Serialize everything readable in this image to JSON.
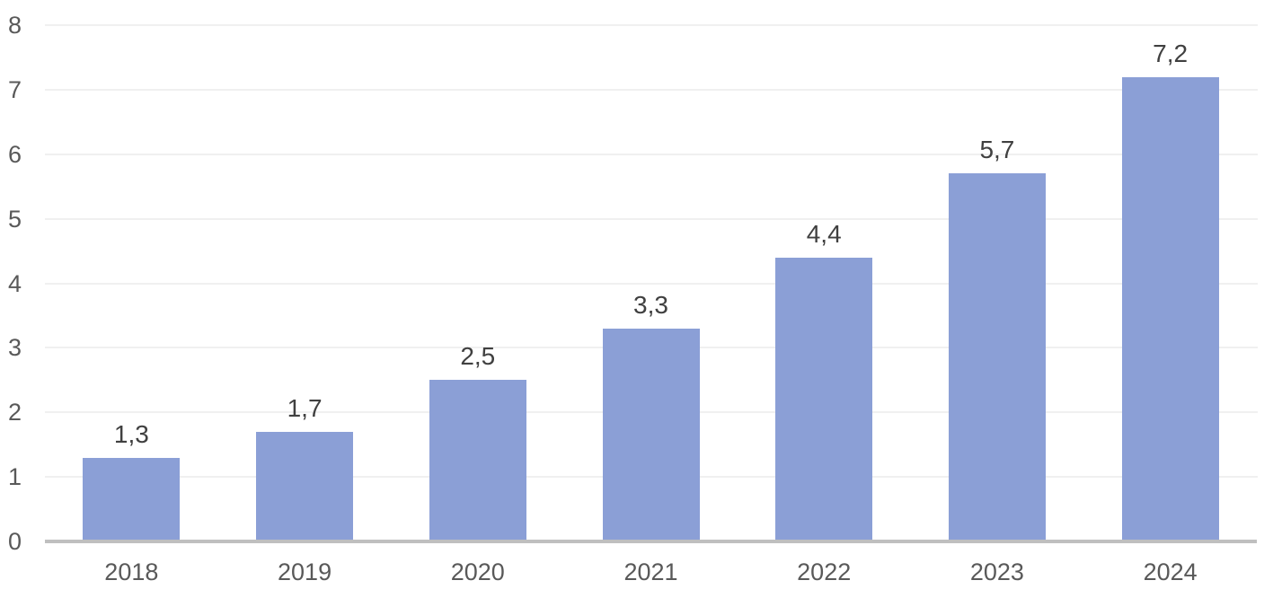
{
  "chart_data": {
    "type": "bar",
    "title": "",
    "xlabel": "",
    "ylabel": "",
    "categories": [
      "2018",
      "2019",
      "2020",
      "2021",
      "2022",
      "2023",
      "2024"
    ],
    "values": [
      1.3,
      1.7,
      2.5,
      3.3,
      4.4,
      5.7,
      7.2
    ],
    "value_labels": [
      "1,3",
      "1,7",
      "2,5",
      "3,3",
      "4,4",
      "5,7",
      "7,2"
    ],
    "decimal_separator": ",",
    "ylim": [
      0,
      8
    ],
    "yticks": [
      0,
      1,
      2,
      3,
      4,
      5,
      6,
      7,
      8
    ],
    "grid": true,
    "legend": "none",
    "data_labels_visible": true,
    "colors": {
      "bar_fill": "#8B9FD6",
      "axis_line": "#BFBFBF",
      "gridline": "#F0F0F0",
      "tick_label": "#595959",
      "data_label": "#404040",
      "background": "#FFFFFF"
    }
  }
}
